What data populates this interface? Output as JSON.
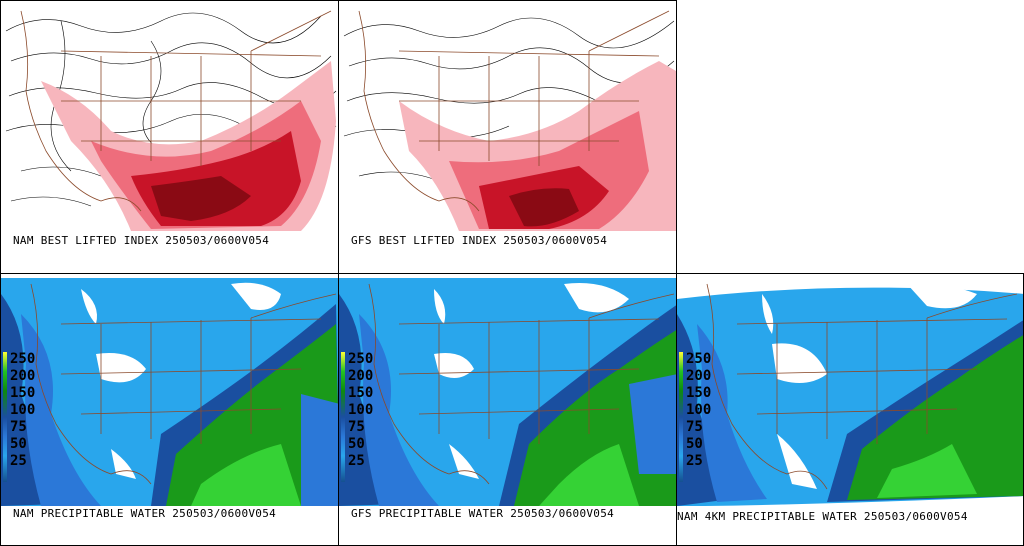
{
  "panels": {
    "nam_li": {
      "caption": "NAM BEST LIFTED INDEX 250503/0600V054"
    },
    "gfs_li": {
      "caption": "GFS BEST LIFTED INDEX 250503/0600V054"
    },
    "nam_pw": {
      "caption": "NAM PRECIPITABLE WATER 250503/0600V054"
    },
    "gfs_pw": {
      "caption": "GFS PRECIPITABLE WATER 250503/0600V054"
    },
    "nam4k_pw": {
      "caption": "NAM 4KM PRECIPITABLE WATER 250503/0600V054"
    }
  },
  "pw_legend": {
    "ticks": [
      "250",
      "200",
      "150",
      "100",
      "75",
      "50",
      "25"
    ],
    "colors": [
      "#ffff33",
      "#22c122",
      "#0e8a0e",
      "#1a4fa0",
      "#2b78d8",
      "#29a6ec",
      "#155090"
    ]
  },
  "colors": {
    "li_light": "#f7b6bd",
    "li_mid": "#ee6d7c",
    "li_dark": "#c81428",
    "li_darkest": "#8a0a14",
    "pw_light": "#29a6ec",
    "pw_mid": "#2b78d8",
    "pw_dark": "#1a4fa0",
    "pw_green": "#1a9a1a",
    "pw_lightgreen": "#35d235",
    "border": "#8b4a2b"
  }
}
